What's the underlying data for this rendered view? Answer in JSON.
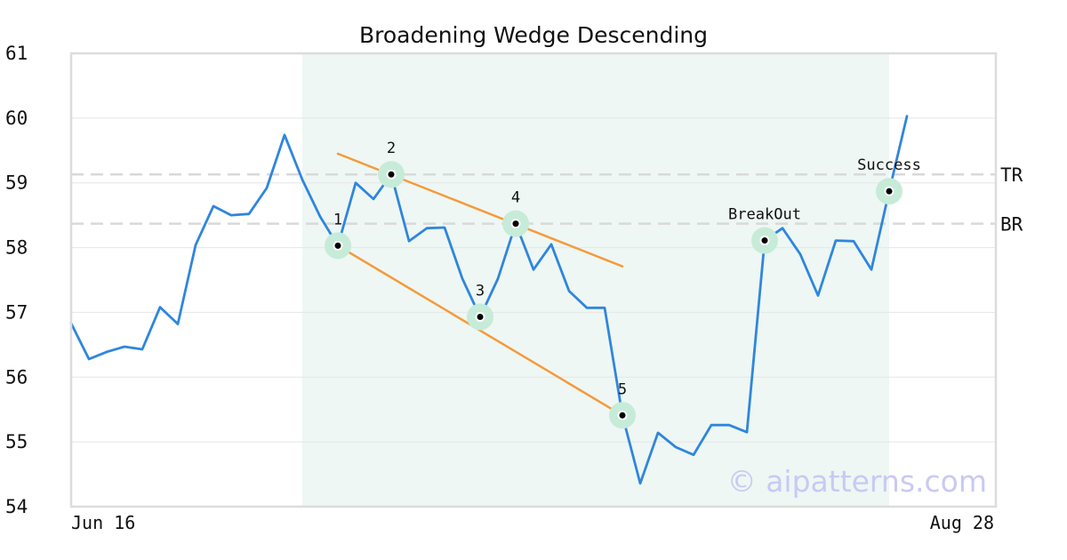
{
  "chart_data": {
    "type": "line",
    "title": "Broadening Wedge Descending",
    "xlabel": "",
    "ylabel": "",
    "ylim": [
      54,
      61
    ],
    "yticks": [
      54,
      55,
      56,
      57,
      58,
      59,
      60,
      61
    ],
    "x_tick_labels": [
      "Jun 16",
      "Aug 28"
    ],
    "grid": "horizontal",
    "series": [
      {
        "color": "#2f86dd",
        "x": [
          0,
          1,
          2,
          3,
          4,
          5,
          6,
          7,
          8,
          9,
          10,
          11,
          12,
          13,
          14,
          15,
          16,
          17,
          18,
          19,
          20,
          21,
          22,
          23,
          24,
          25,
          26,
          27,
          28,
          29,
          30,
          31,
          32,
          33,
          34,
          35,
          36,
          37,
          38,
          39,
          40,
          41,
          42,
          43,
          44,
          45,
          46,
          47
        ],
        "values": [
          56.83,
          56.28,
          56.39,
          56.47,
          56.43,
          57.08,
          56.82,
          58.04,
          58.64,
          58.5,
          58.52,
          58.92,
          59.74,
          59.05,
          58.48,
          58.03,
          59.0,
          58.75,
          59.13,
          58.1,
          58.3,
          58.31,
          57.52,
          56.93,
          57.52,
          58.37,
          57.66,
          58.05,
          57.33,
          57.07,
          57.07,
          55.41,
          54.36,
          55.14,
          54.92,
          54.8,
          55.26,
          55.26,
          55.15,
          58.11,
          58.3,
          57.9,
          57.26,
          58.11,
          58.1,
          57.66,
          58.87,
          60.03
        ]
      }
    ],
    "pattern_region": {
      "x_start": 13,
      "x_end": 46,
      "color": "#eef7f3"
    },
    "reference_lines": [
      {
        "label": "TR",
        "y": 59.13
      },
      {
        "label": "BR",
        "y": 58.37
      }
    ],
    "trend_lines": [
      {
        "color": "#f59a3c",
        "x1": 15,
        "y1": 59.45,
        "x2": 31,
        "y2": 57.71
      },
      {
        "color": "#f59a3c",
        "x1": 15,
        "y1": 58.03,
        "x2": 31,
        "y2": 55.41
      }
    ],
    "annotations": [
      {
        "label": "1",
        "x": 15,
        "y": 58.03
      },
      {
        "label": "2",
        "x": 18,
        "y": 59.13
      },
      {
        "label": "3",
        "x": 23,
        "y": 56.93
      },
      {
        "label": "4",
        "x": 25,
        "y": 58.37
      },
      {
        "label": "5",
        "x": 31,
        "y": 55.41
      },
      {
        "label": "BreakOut",
        "x": 39,
        "y": 58.11
      },
      {
        "label": "Success",
        "x": 46,
        "y": 58.87
      }
    ],
    "marker_color": "#c7ebd9",
    "watermark": "© aipatterns.com"
  }
}
